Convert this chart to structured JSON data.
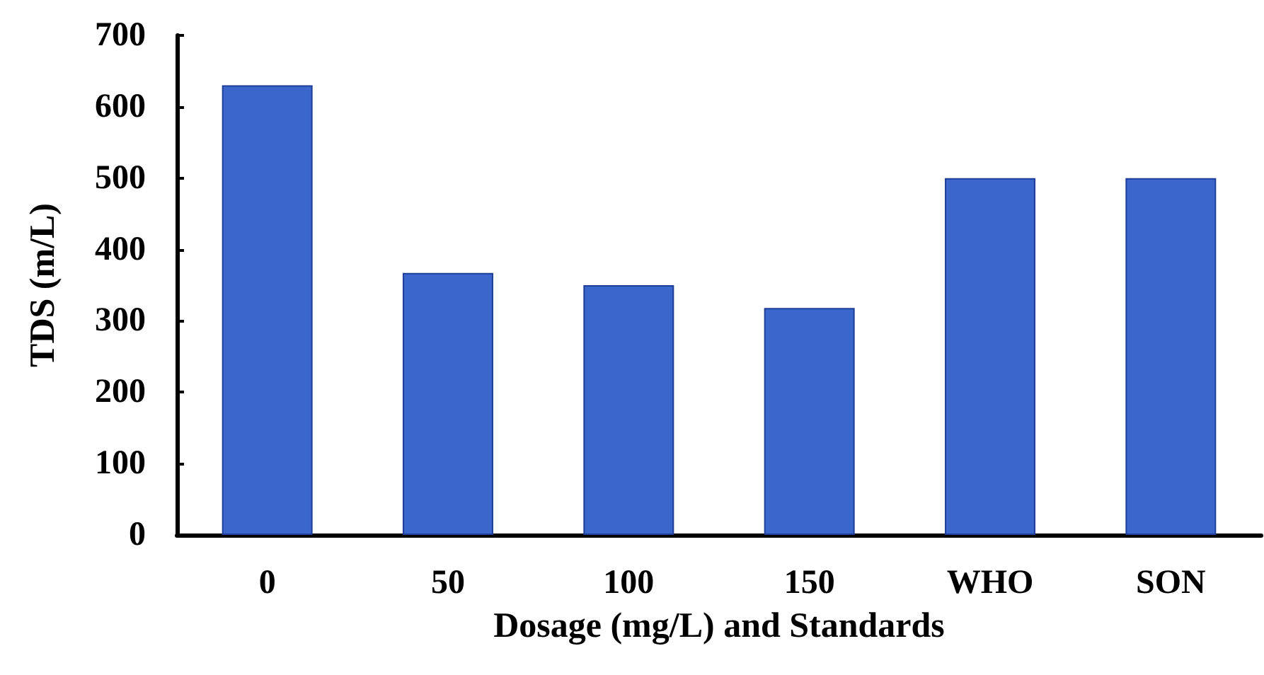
{
  "chart_data": {
    "type": "bar",
    "xlabel": "Dosage (mg/L) and Standards",
    "ylabel": "TDS (m/L)",
    "categories": [
      "0",
      "50",
      "100",
      "150",
      "WHO",
      "SON"
    ],
    "values": [
      630,
      367,
      350,
      318,
      500,
      500
    ],
    "color": "#3b66cc",
    "ylim": [
      0,
      700
    ],
    "yticks": [
      0,
      100,
      200,
      300,
      400,
      500,
      600,
      700
    ],
    "grid": false
  }
}
